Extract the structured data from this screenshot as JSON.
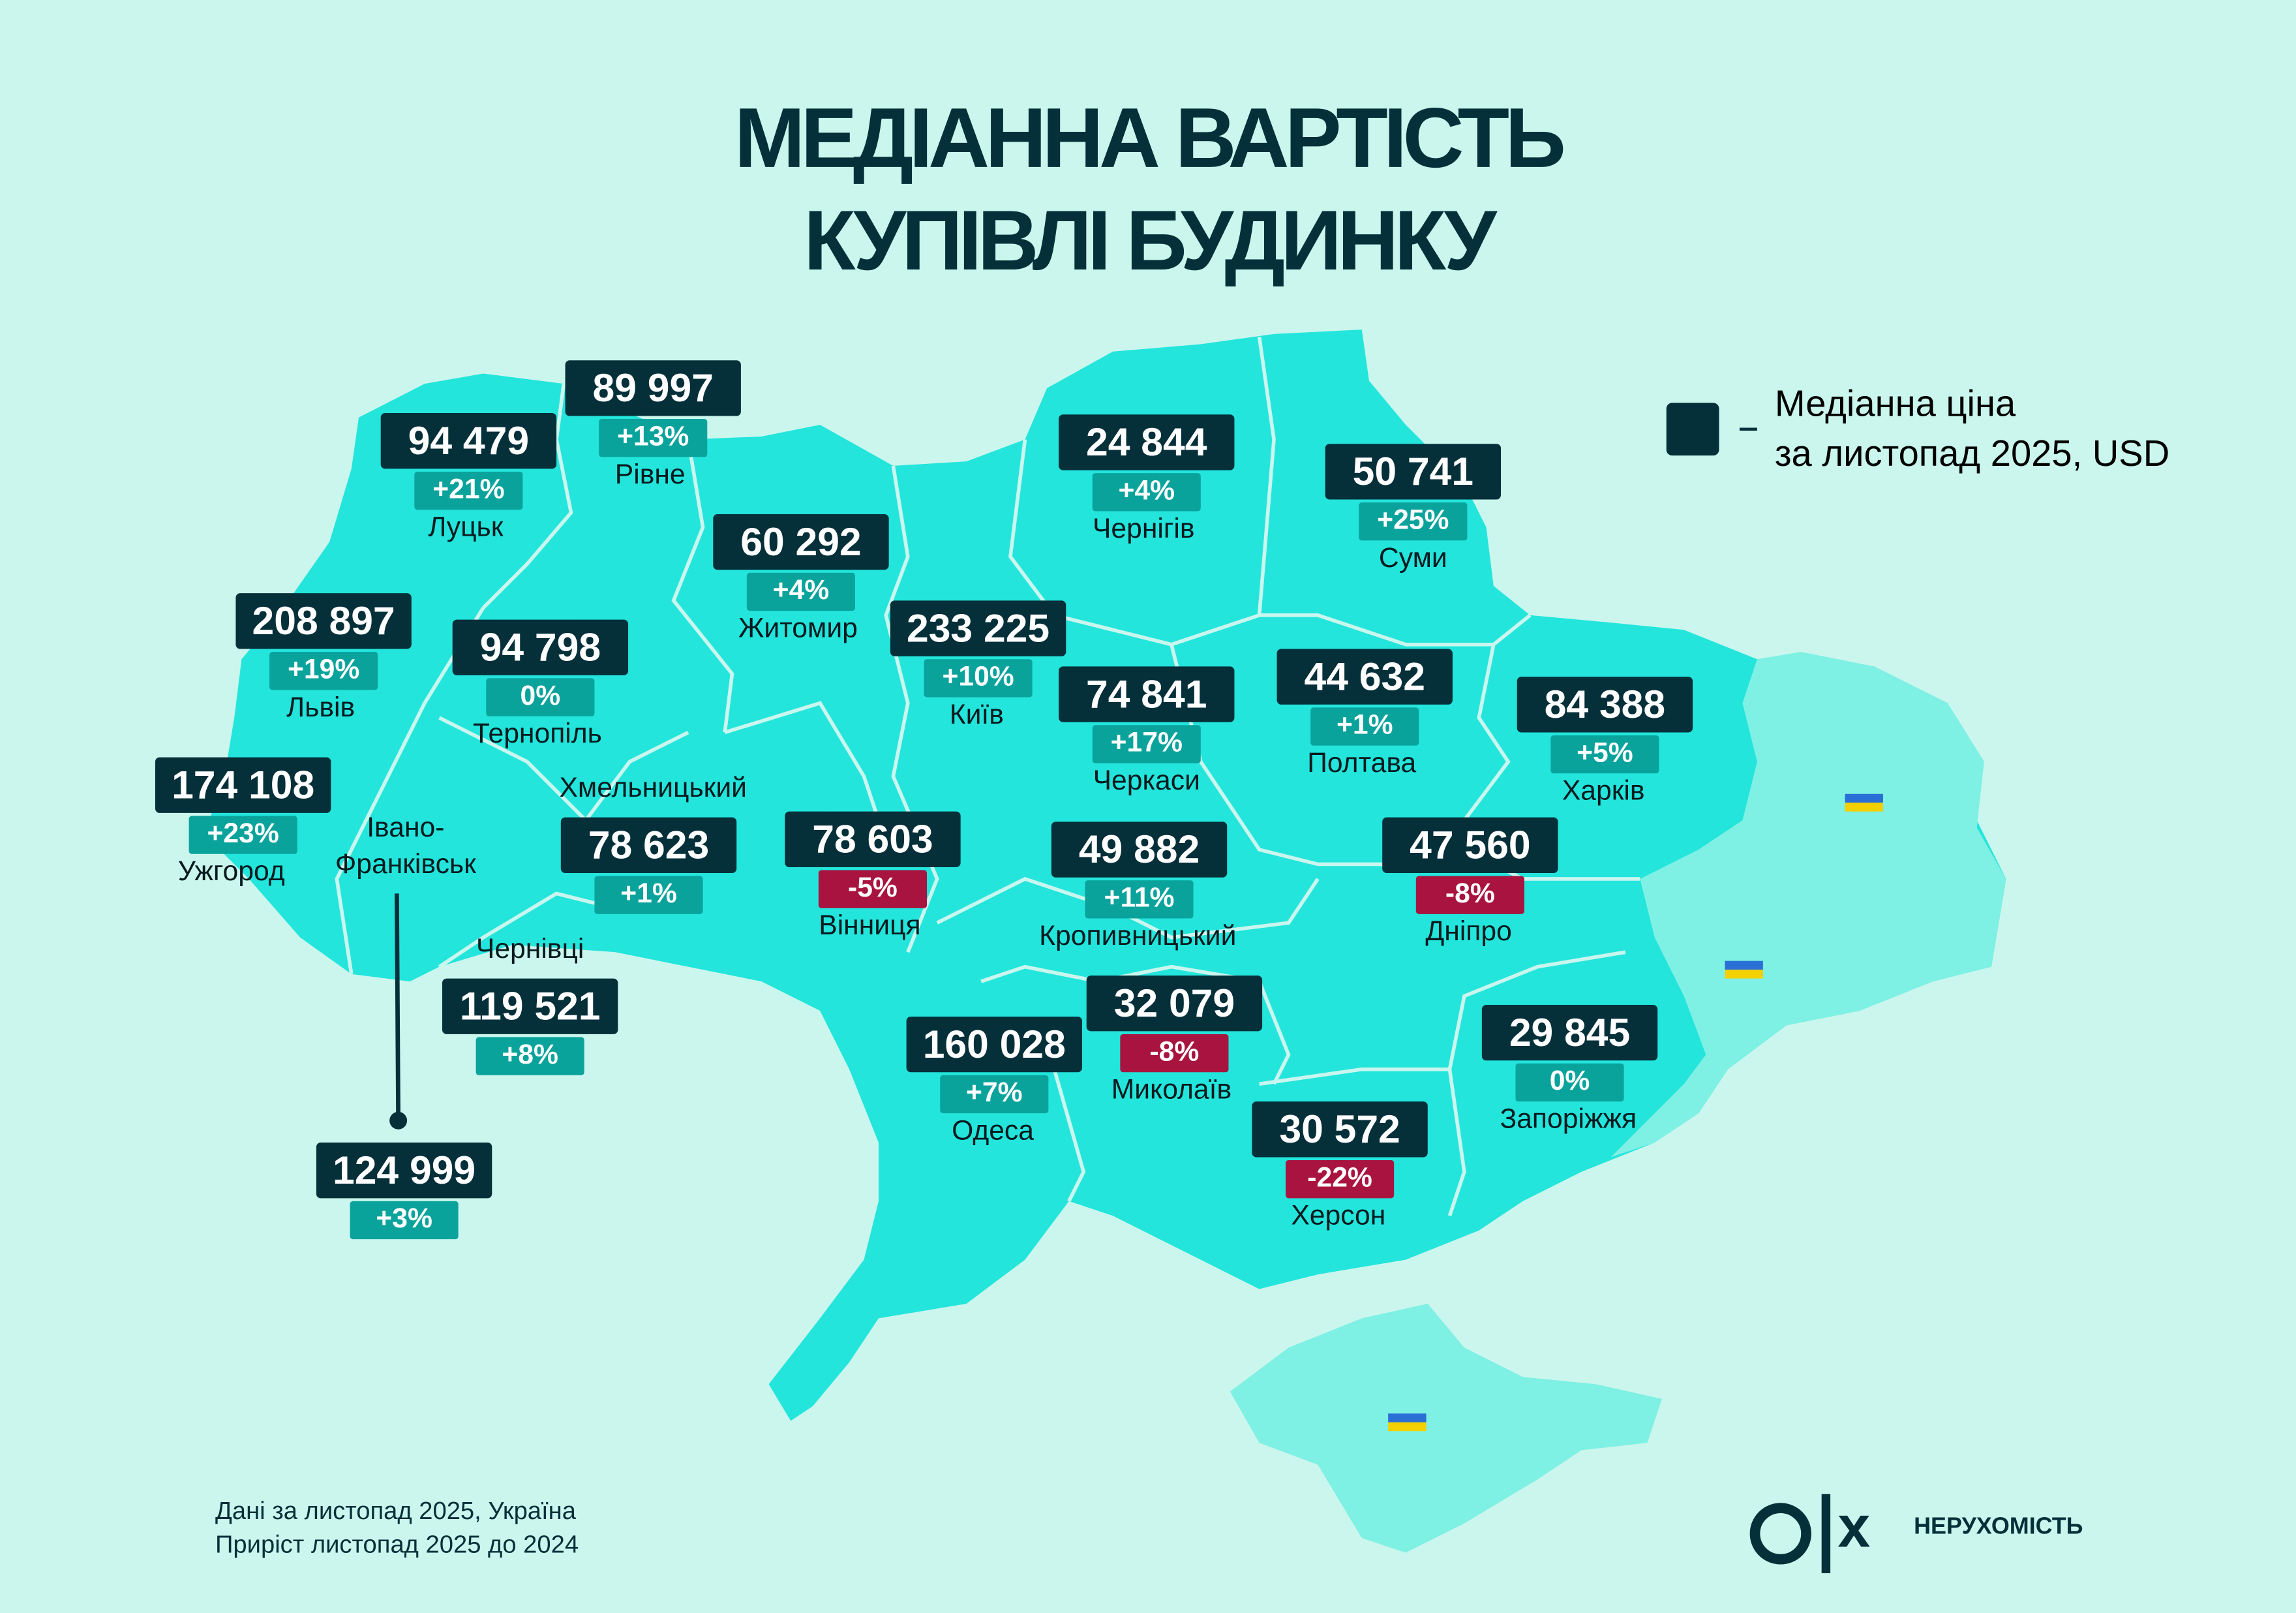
{
  "title": {
    "line1": "МЕДІАННА ВАРТІСТЬ",
    "line2": "КУПІВЛІ БУДИНКУ"
  },
  "legend": {
    "line1": "Медіанна ціна",
    "line2": "за листопад 2025, USD",
    "dash": "–"
  },
  "footnote": {
    "line1": "Дані за листопад 2025, Україна",
    "line2": "Приріст листопад 2025 до 2024"
  },
  "brand": {
    "logo": "OLX",
    "label": "НЕРУХОМІСТЬ"
  },
  "colors": {
    "background": "#cbf6ed",
    "map_fill": "#23e5dc",
    "occupied_fill": "#7ff0e4",
    "price_box": "#05303a",
    "increase": "#0aa39c",
    "decrease": "#a8143f"
  },
  "regions": [
    {
      "city": "Луцьк",
      "price": "94 479",
      "change": "+21%"
    },
    {
      "city": "Рівне",
      "price": "89 997",
      "change": "+13%"
    },
    {
      "city": "Чернігів",
      "price": "24 844",
      "change": "+4%"
    },
    {
      "city": "Суми",
      "price": "50 741",
      "change": "+25%"
    },
    {
      "city": "Житомир",
      "price": "60 292",
      "change": "+4%"
    },
    {
      "city": "Київ",
      "price": "233 225",
      "change": "+10%"
    },
    {
      "city": "Львів",
      "price": "208 897",
      "change": "+19%"
    },
    {
      "city": "Тернопіль",
      "price": "94 798",
      "change": "0%"
    },
    {
      "city": "Черкаси",
      "price": "74 841",
      "change": "+17%"
    },
    {
      "city": "Полтава",
      "price": "44 632",
      "change": "+1%"
    },
    {
      "city": "Харків",
      "price": "84 388",
      "change": "+5%"
    },
    {
      "city": "Ужгород",
      "price": "174 108",
      "change": "+23%"
    },
    {
      "city": "Івано-Франківськ",
      "price": "124 999",
      "change": "+3%"
    },
    {
      "city": "Хмельницький",
      "price": "78 623",
      "change": "+1%"
    },
    {
      "city": "Вінниця",
      "price": "78 603",
      "change": "-5%"
    },
    {
      "city": "Кропивницький",
      "price": "49 882",
      "change": "+11%"
    },
    {
      "city": "Дніпро",
      "price": "47 560",
      "change": "-8%"
    },
    {
      "city": "Чернівці",
      "price": "119 521",
      "change": "+8%"
    },
    {
      "city": "Запоріжжя",
      "price": "29 845",
      "change": "0%"
    },
    {
      "city": "Миколаїв",
      "price": "32 079",
      "change": "-8%"
    },
    {
      "city": "Одеса",
      "price": "160 028",
      "change": "+7%"
    },
    {
      "city": "Херсон",
      "price": "30 572",
      "change": "-22%"
    }
  ]
}
